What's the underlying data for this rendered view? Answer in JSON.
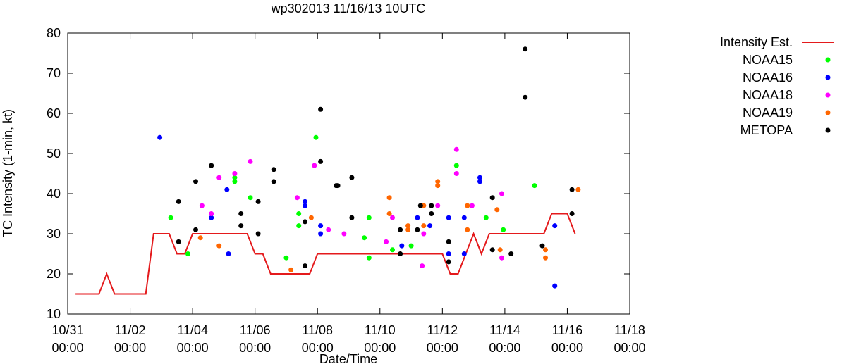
{
  "chart_data": {
    "type": "scatter",
    "title": "wp302013 11/16/13 10UTC",
    "xlabel": "Date/Time",
    "ylabel": "TC Intensity (1-min, kt)",
    "ylim": [
      10,
      80
    ],
    "yticks": [
      10,
      20,
      30,
      40,
      50,
      60,
      70,
      80
    ],
    "xlim_days": [
      0,
      18
    ],
    "xticks": [
      {
        "day": 0,
        "date": "10/31",
        "time": "00:00"
      },
      {
        "day": 2,
        "date": "11/02",
        "time": "00:00"
      },
      {
        "day": 4,
        "date": "11/04",
        "time": "00:00"
      },
      {
        "day": 6,
        "date": "11/06",
        "time": "00:00"
      },
      {
        "day": 8,
        "date": "11/08",
        "time": "00:00"
      },
      {
        "day": 10,
        "date": "11/10",
        "time": "00:00"
      },
      {
        "day": 12,
        "date": "11/12",
        "time": "00:00"
      },
      {
        "day": 14,
        "date": "11/14",
        "time": "00:00"
      },
      {
        "day": 16,
        "date": "11/16",
        "time": "00:00"
      },
      {
        "day": 18,
        "date": "11/18",
        "time": "00:00"
      }
    ],
    "legend_position": "right",
    "series": [
      {
        "name": "Intensity Est.",
        "kind": "line",
        "color": "#e41a1c",
        "points": [
          [
            0.25,
            15
          ],
          [
            1,
            15
          ],
          [
            1.25,
            20
          ],
          [
            1.5,
            15
          ],
          [
            2.5,
            15
          ],
          [
            2.75,
            30
          ],
          [
            3.25,
            30
          ],
          [
            3.5,
            25
          ],
          [
            3.75,
            25
          ],
          [
            4,
            30
          ],
          [
            5.75,
            30
          ],
          [
            6,
            25
          ],
          [
            6.25,
            25
          ],
          [
            6.5,
            20
          ],
          [
            7.75,
            20
          ],
          [
            8,
            25
          ],
          [
            12,
            25
          ],
          [
            12.25,
            20
          ],
          [
            12.5,
            20
          ],
          [
            12.75,
            25
          ],
          [
            13,
            30
          ],
          [
            13.25,
            25
          ],
          [
            13.5,
            30
          ],
          [
            15.25,
            30
          ],
          [
            15.5,
            35
          ],
          [
            16,
            35
          ],
          [
            16.25,
            30
          ]
        ]
      },
      {
        "name": "NOAA15",
        "kind": "points",
        "color": "#00ff00",
        "points": [
          [
            3.3,
            34
          ],
          [
            3.85,
            25
          ],
          [
            5.35,
            43
          ],
          [
            5.35,
            44
          ],
          [
            5.85,
            39
          ],
          [
            7,
            24
          ],
          [
            7.4,
            35
          ],
          [
            7.4,
            32
          ],
          [
            7.95,
            54
          ],
          [
            9.5,
            29
          ],
          [
            9.65,
            24
          ],
          [
            9.65,
            34
          ],
          [
            10.4,
            26
          ],
          [
            11,
            27
          ],
          [
            12.45,
            47
          ],
          [
            13.4,
            34
          ],
          [
            13.95,
            31
          ],
          [
            14.95,
            42
          ]
        ]
      },
      {
        "name": "NOAA16",
        "kind": "points",
        "color": "#0000ff",
        "points": [
          [
            2.95,
            54
          ],
          [
            4.6,
            34
          ],
          [
            5.1,
            41
          ],
          [
            5.15,
            25
          ],
          [
            7.6,
            38
          ],
          [
            7.6,
            37
          ],
          [
            8.1,
            32
          ],
          [
            8.1,
            30
          ],
          [
            10.7,
            27
          ],
          [
            11.2,
            34
          ],
          [
            11.6,
            32
          ],
          [
            12.2,
            34
          ],
          [
            12.2,
            25
          ],
          [
            12.7,
            34
          ],
          [
            12.7,
            25
          ],
          [
            13.2,
            44
          ],
          [
            13.2,
            43
          ],
          [
            15.6,
            17
          ],
          [
            15.6,
            32
          ]
        ]
      },
      {
        "name": "NOAA18",
        "kind": "points",
        "color": "#ff00ff",
        "points": [
          [
            4.3,
            37
          ],
          [
            4.6,
            35
          ],
          [
            4.85,
            44
          ],
          [
            5.35,
            45
          ],
          [
            5.85,
            48
          ],
          [
            7.35,
            39
          ],
          [
            7.9,
            47
          ],
          [
            8.35,
            31
          ],
          [
            8.85,
            30
          ],
          [
            10.2,
            28
          ],
          [
            10.4,
            34
          ],
          [
            11.35,
            22
          ],
          [
            11.4,
            30
          ],
          [
            11.85,
            37
          ],
          [
            12.45,
            51
          ],
          [
            12.45,
            45
          ],
          [
            12.95,
            37
          ],
          [
            13.9,
            40
          ],
          [
            13.9,
            24
          ]
        ]
      },
      {
        "name": "NOAA19",
        "kind": "points",
        "color": "#ff6600",
        "points": [
          [
            4.25,
            29
          ],
          [
            4.85,
            27
          ],
          [
            7.15,
            21
          ],
          [
            7.8,
            34
          ],
          [
            10.3,
            39
          ],
          [
            10.3,
            35
          ],
          [
            10.9,
            32
          ],
          [
            10.9,
            31
          ],
          [
            11.4,
            37
          ],
          [
            11.4,
            32
          ],
          [
            11.85,
            43
          ],
          [
            11.85,
            42
          ],
          [
            12.8,
            37
          ],
          [
            12.8,
            31
          ],
          [
            13.75,
            36
          ],
          [
            13.85,
            26
          ],
          [
            15.3,
            26
          ],
          [
            15.3,
            24
          ],
          [
            16.35,
            41
          ]
        ]
      },
      {
        "name": "METOPA",
        "kind": "points",
        "color": "#000000",
        "points": [
          [
            3.55,
            28
          ],
          [
            3.55,
            38
          ],
          [
            4.1,
            43
          ],
          [
            4.1,
            31
          ],
          [
            4.6,
            47
          ],
          [
            5.55,
            35
          ],
          [
            5.55,
            32
          ],
          [
            6.1,
            38
          ],
          [
            6.1,
            30
          ],
          [
            6.6,
            46
          ],
          [
            6.6,
            43
          ],
          [
            7.6,
            33
          ],
          [
            7.6,
            22
          ],
          [
            8.1,
            61
          ],
          [
            8.1,
            48
          ],
          [
            8.6,
            42
          ],
          [
            8.65,
            42
          ],
          [
            9.1,
            44
          ],
          [
            9.1,
            34
          ],
          [
            10.65,
            31
          ],
          [
            10.65,
            25
          ],
          [
            11.2,
            31
          ],
          [
            11.3,
            37
          ],
          [
            11.65,
            37
          ],
          [
            11.65,
            35
          ],
          [
            12.2,
            28
          ],
          [
            12.2,
            23
          ],
          [
            13.6,
            39
          ],
          [
            13.6,
            26
          ],
          [
            14.2,
            25
          ],
          [
            14.65,
            76
          ],
          [
            14.65,
            64
          ],
          [
            15.2,
            27
          ],
          [
            16.15,
            41
          ],
          [
            16.15,
            35
          ]
        ]
      }
    ]
  }
}
